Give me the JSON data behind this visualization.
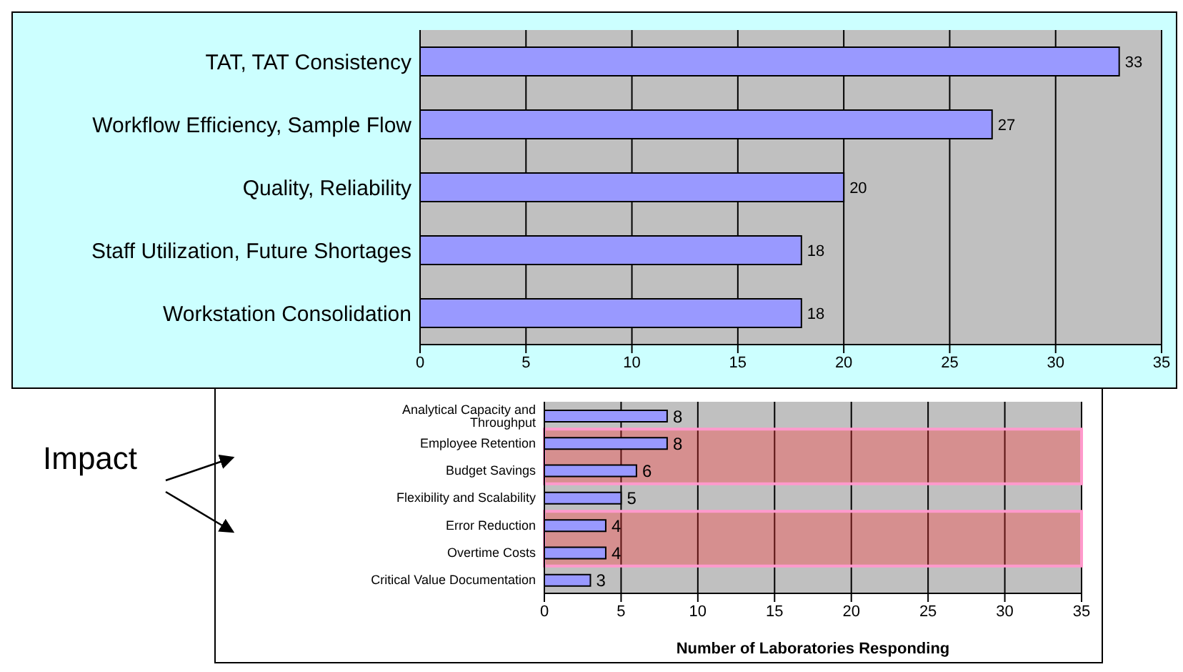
{
  "chart_data": [
    {
      "type": "bar",
      "orientation": "horizontal",
      "categories": [
        "TAT, TAT Consistency",
        "Workflow Efficiency, Sample Flow",
        "Quality, Reliability",
        "Staff Utilization, Future Shortages",
        "Workstation Consolidation"
      ],
      "values": [
        33,
        27,
        20,
        18,
        18
      ],
      "color": "#9999ff",
      "xlim": [
        0,
        35
      ],
      "xticks": [
        0,
        5,
        10,
        15,
        20,
        25,
        30,
        35
      ],
      "grid": "x",
      "data_labels": true,
      "legend": false
    },
    {
      "type": "bar",
      "orientation": "horizontal",
      "categories": [
        "Analytical Capacity and Throughput",
        "Employee Retention",
        "Budget Savings",
        "Flexibility and Scalability",
        "Error Reduction",
        "Overtime Costs",
        "Critical Value Documentation"
      ],
      "values": [
        8,
        8,
        6,
        5,
        4,
        4,
        3
      ],
      "color": "#9999ff",
      "xlim": [
        0,
        35
      ],
      "xticks": [
        0,
        5,
        10,
        15,
        20,
        25,
        30,
        35
      ],
      "grid": "x",
      "data_labels": true,
      "legend": false,
      "xlabel": "Number of Laboratories Responding",
      "bands": [
        {
          "axis": "y",
          "from": "Employee Retention",
          "to": "Budget Savings",
          "color": "#ff3333"
        },
        {
          "axis": "y",
          "from": "Error Reduction",
          "to": "Overtime Costs",
          "color": "#ff3333"
        }
      ],
      "annotations": [
        "Impact"
      ]
    }
  ]
}
